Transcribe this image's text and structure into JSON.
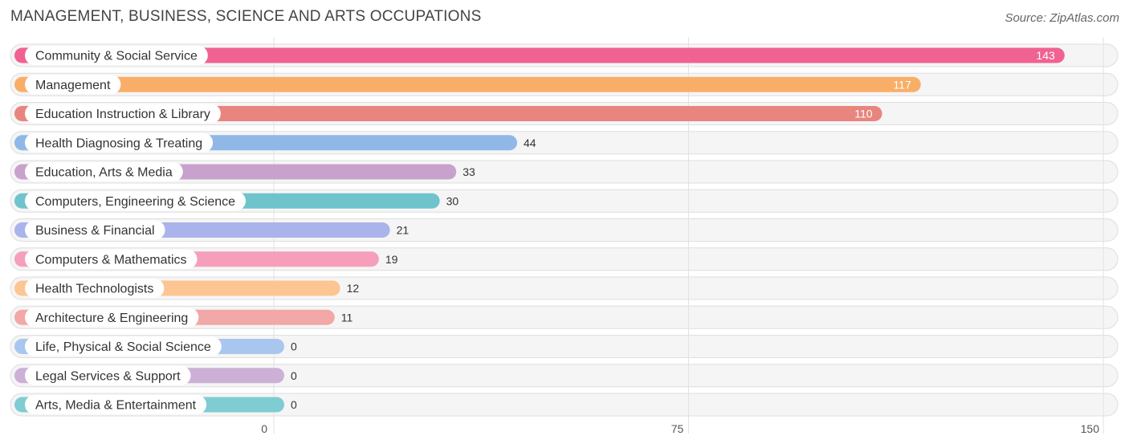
{
  "header": {
    "title": "MANAGEMENT, BUSINESS, SCIENCE AND ARTS OCCUPATIONS",
    "source": "Source: ZipAtlas.com"
  },
  "chart_data": {
    "type": "bar",
    "orientation": "horizontal",
    "title": "MANAGEMENT, BUSINESS, SCIENCE AND ARTS OCCUPATIONS",
    "xlim": [
      0,
      150
    ],
    "xticks": [
      0,
      75,
      150
    ],
    "grid": true,
    "categories": [
      "Community & Social Service",
      "Management",
      "Education Instruction & Library",
      "Health Diagnosing & Treating",
      "Education, Arts & Media",
      "Computers, Engineering & Science",
      "Business & Financial",
      "Computers & Mathematics",
      "Health Technologists",
      "Architecture & Engineering",
      "Life, Physical & Social Science",
      "Legal Services & Support",
      "Arts, Media & Entertainment"
    ],
    "values": [
      143,
      117,
      110,
      44,
      33,
      30,
      21,
      19,
      12,
      11,
      0,
      0,
      0
    ],
    "colors": [
      "#f06292",
      "#f9ae68",
      "#e8857f",
      "#90b8e6",
      "#c9a1cd",
      "#6fc3cc",
      "#aab3ea",
      "#f59fbb",
      "#fcc592",
      "#f1a8a6",
      "#a9c6ef",
      "#cdb0d6",
      "#7fccd3"
    ]
  }
}
